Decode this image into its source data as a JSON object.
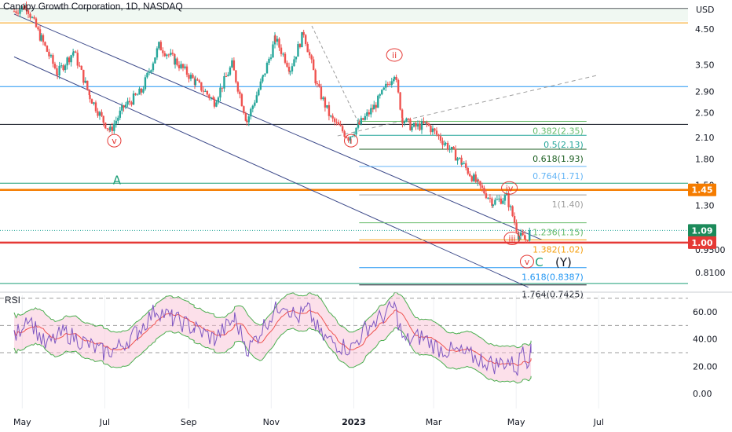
{
  "header": {
    "title": "Canopy Growth Corporation, 1D, NASDAQ",
    "currency": "USD"
  },
  "chart_data": [
    {
      "type": "candlestick",
      "title": "Canopy Growth Corporation, 1D, NASDAQ",
      "y_scale": "log",
      "ylim": [
        0.72,
        5.6
      ],
      "y_ticks": [
        "4.50",
        "3.50",
        "2.90",
        "2.50",
        "2.10",
        "1.80",
        "1.50",
        "1.30",
        "0.9500",
        "0.8100"
      ],
      "x_ticks": [
        "May",
        "Jul",
        "Sep",
        "Nov",
        "2023",
        "Mar",
        "May",
        "Jul"
      ],
      "price_path": [
        {
          "date": "2022-04-25",
          "close": 5.1
        },
        {
          "date": "2022-05-04",
          "close": 5.3
        },
        {
          "date": "2022-05-15",
          "close": 4.2
        },
        {
          "date": "2022-05-27",
          "close": 3.3
        },
        {
          "date": "2022-06-08",
          "close": 3.85
        },
        {
          "date": "2022-06-20",
          "close": 2.8
        },
        {
          "date": "2022-06-30",
          "close": 2.35
        },
        {
          "date": "2022-07-05",
          "close": 2.2
        },
        {
          "date": "2022-07-15",
          "close": 2.6
        },
        {
          "date": "2022-07-28",
          "close": 2.9
        },
        {
          "date": "2022-08-10",
          "close": 4.0
        },
        {
          "date": "2022-08-22",
          "close": 3.6
        },
        {
          "date": "2022-09-06",
          "close": 3.1
        },
        {
          "date": "2022-09-20",
          "close": 2.7
        },
        {
          "date": "2022-10-03",
          "close": 3.5
        },
        {
          "date": "2022-10-14",
          "close": 2.35
        },
        {
          "date": "2022-10-26",
          "close": 3.2
        },
        {
          "date": "2022-11-04",
          "close": 4.2
        },
        {
          "date": "2022-11-15",
          "close": 3.4
        },
        {
          "date": "2022-11-25",
          "close": 4.4
        },
        {
          "date": "2022-12-05",
          "close": 3.0
        },
        {
          "date": "2022-12-15",
          "close": 2.4
        },
        {
          "date": "2022-12-28",
          "close": 2.1
        },
        {
          "date": "2023-01-05",
          "close": 2.3
        },
        {
          "date": "2023-01-16",
          "close": 2.6
        },
        {
          "date": "2023-01-31",
          "close": 3.3
        },
        {
          "date": "2023-02-06",
          "close": 2.4
        },
        {
          "date": "2023-02-13",
          "close": 2.25
        },
        {
          "date": "2023-02-24",
          "close": 2.3
        },
        {
          "date": "2023-03-10",
          "close": 2.0
        },
        {
          "date": "2023-03-22",
          "close": 1.75
        },
        {
          "date": "2023-04-03",
          "close": 1.5
        },
        {
          "date": "2023-04-14",
          "close": 1.33
        },
        {
          "date": "2023-04-24",
          "close": 1.38
        },
        {
          "date": "2023-05-03",
          "close": 1.05
        },
        {
          "date": "2023-05-08",
          "close": 1.02
        },
        {
          "date": "2023-05-12",
          "close": 1.09
        }
      ],
      "horizontal_levels": [
        {
          "price": 5.2,
          "color": "#131722"
        },
        {
          "price": 4.7,
          "color": "#f59e0b"
        },
        {
          "price": 3.0,
          "color": "#2196f3"
        },
        {
          "price": 2.3,
          "color": "#131722"
        },
        {
          "price": 1.52,
          "color": "#1a9e76"
        },
        {
          "price": 1.45,
          "color": "#f57c00"
        },
        {
          "price": 1.0,
          "color": "#e53935"
        },
        {
          "price": 0.75,
          "color": "#1a9e76"
        }
      ],
      "fib_levels": [
        {
          "label": "0.382(2.35)",
          "price": 2.35,
          "color": "#66bb6a"
        },
        {
          "label": "0.5(2.13)",
          "price": 2.13,
          "color": "#26a69a"
        },
        {
          "label": "0.618(1.93)",
          "price": 1.93,
          "color": "#1b5e20"
        },
        {
          "label": "0.764(1.71)",
          "price": 1.71,
          "color": "#64b5f6"
        },
        {
          "label": "1(1.40)",
          "price": 1.4,
          "color": "#9e9e9e"
        },
        {
          "label": "1.236(1.15)",
          "price": 1.15,
          "color": "#66bb6a"
        },
        {
          "label": "1.382(1.02)",
          "price": 1.02,
          "color": "#f59e0b"
        },
        {
          "label": "1.618(0.8387)",
          "price": 0.8387,
          "color": "#2196f3"
        },
        {
          "label": "1.764(0.7425)",
          "price": 0.7425,
          "color": "#131722"
        }
      ],
      "price_labels": [
        {
          "text": "1.45",
          "price": 1.45,
          "color": "#f57c00"
        },
        {
          "text": "1.09",
          "price": 1.09,
          "color": "#1b8a5a"
        },
        {
          "text": "1.00",
          "price": 1.0,
          "color": "#e53935"
        }
      ],
      "wave_labels": [
        {
          "text": "v",
          "date": "2022-07-08",
          "price": 2.05,
          "circled": true,
          "color": "#e53935"
        },
        {
          "text": "i",
          "date": "2022-12-30",
          "price": 2.05,
          "circled": true,
          "color": "#e53935"
        },
        {
          "text": "ii",
          "date": "2023-01-31",
          "price": 3.75,
          "circled": true,
          "color": "#e53935"
        },
        {
          "text": "iv",
          "date": "2023-04-26",
          "price": 1.47,
          "circled": true,
          "color": "#e53935"
        },
        {
          "text": "iii",
          "date": "2023-04-28",
          "price": 1.03,
          "circled": true,
          "color": "#e53935"
        },
        {
          "text": "v",
          "date": "2023-05-09",
          "price": 0.875,
          "circled": true,
          "color": "#e53935"
        },
        {
          "text": "A",
          "date": "2022-07-10",
          "price": 1.55,
          "circled": false,
          "color": "#1a9e76"
        },
        {
          "text": "C",
          "date": "2023-05-18",
          "price": 0.87,
          "circled": false,
          "color": "#1a9e76"
        },
        {
          "text": "(Y)",
          "date": "2023-06-05",
          "price": 0.87,
          "circled": false,
          "color": "#131722"
        }
      ]
    },
    {
      "type": "line",
      "title": "RSI",
      "ylim": [
        -5,
        78
      ],
      "y_ticks": [
        "60.00",
        "40.00",
        "20.00",
        "0.00"
      ],
      "reference_levels": [
        70,
        50,
        30
      ],
      "series": [
        {
          "values_by_date": [
            [
              "2022-04-25",
              40
            ],
            [
              "2022-05-05",
              58
            ],
            [
              "2022-05-18",
              35
            ],
            [
              "2022-06-01",
              45
            ],
            [
              "2022-06-15",
              38
            ],
            [
              "2022-06-30",
              30
            ],
            [
              "2022-07-10",
              33
            ],
            [
              "2022-07-25",
              45
            ],
            [
              "2022-08-08",
              62
            ],
            [
              "2022-08-20",
              55
            ],
            [
              "2022-09-05",
              48
            ],
            [
              "2022-09-20",
              40
            ],
            [
              "2022-10-05",
              55
            ],
            [
              "2022-10-15",
              32
            ],
            [
              "2022-10-28",
              52
            ],
            [
              "2022-11-10",
              68
            ],
            [
              "2022-11-20",
              55
            ],
            [
              "2022-11-28",
              62
            ],
            [
              "2022-12-08",
              42
            ],
            [
              "2022-12-20",
              36
            ],
            [
              "2022-12-30",
              33
            ],
            [
              "2023-01-10",
              48
            ],
            [
              "2023-01-20",
              55
            ],
            [
              "2023-01-31",
              64
            ],
            [
              "2023-02-07",
              38
            ],
            [
              "2023-02-20",
              42
            ],
            [
              "2023-03-05",
              33
            ],
            [
              "2023-03-20",
              30
            ],
            [
              "2023-04-05",
              25
            ],
            [
              "2023-04-15",
              21
            ],
            [
              "2023-04-25",
              24
            ],
            [
              "2023-05-02",
              18
            ],
            [
              "2023-05-06",
              36
            ],
            [
              "2023-05-09",
              25
            ],
            [
              "2023-05-12",
              30
            ]
          ]
        }
      ]
    }
  ]
}
